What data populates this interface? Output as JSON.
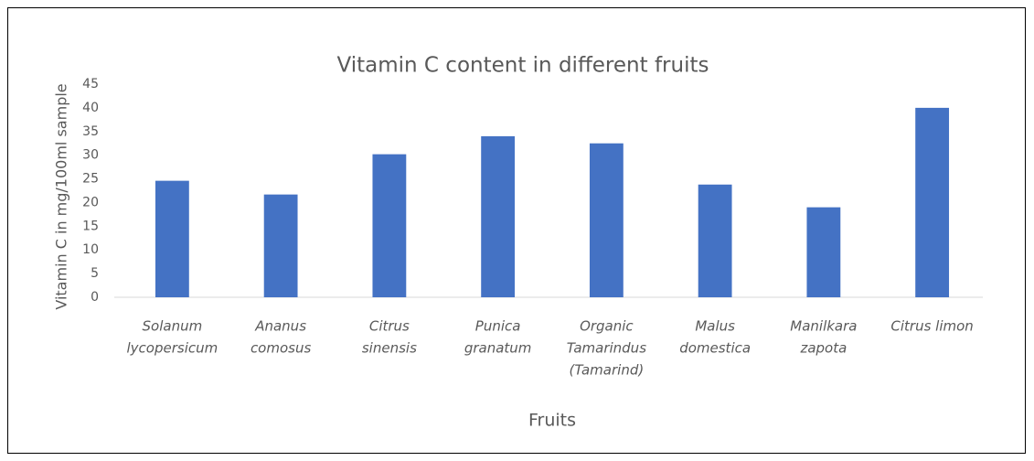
{
  "chart_data": {
    "type": "bar",
    "title": "Vitamin C content in different fruits",
    "x_label": "Fruits",
    "y_label": "Vitamin C  in mg/100ml sample",
    "categories": [
      [
        "Solanum",
        "lycopersicum"
      ],
      [
        "Ananus",
        "comosus"
      ],
      [
        "Citrus",
        "sinensis"
      ],
      [
        "Punica",
        "granatum"
      ],
      [
        "Organic",
        "Tamarindus",
        "(Tamarind)"
      ],
      [
        "Malus",
        "domestica"
      ],
      [
        "Manilkara",
        "zapota"
      ],
      [
        "Citrus limon"
      ]
    ],
    "values": [
      24.6,
      21.7,
      30.2,
      34,
      32.5,
      23.8,
      19,
      40
    ],
    "color": "#4472c4",
    "ylim": [
      0,
      45
    ],
    "yticks": [
      0,
      5,
      10,
      15,
      20,
      25,
      30,
      35,
      40,
      45
    ],
    "grid": false
  }
}
